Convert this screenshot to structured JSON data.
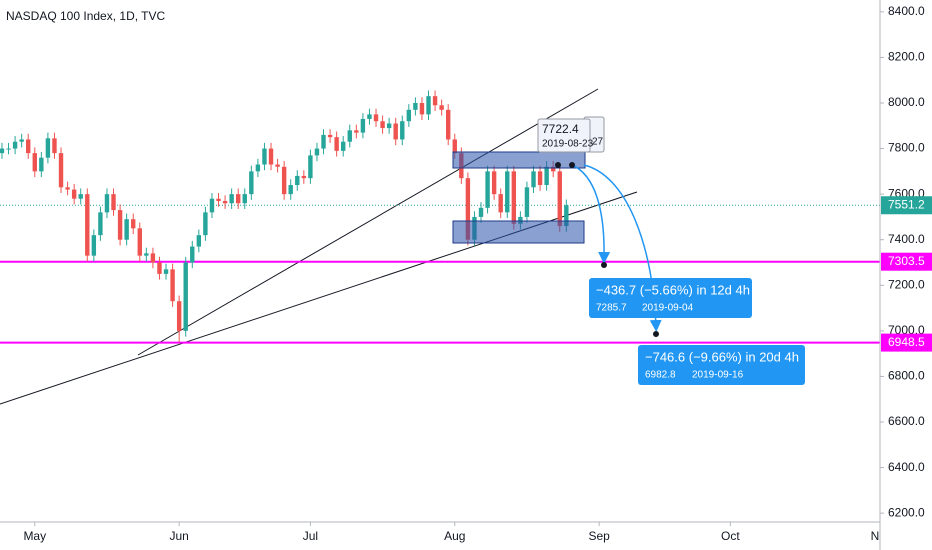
{
  "chart_data": {
    "type": "candlestick",
    "title": "NASDAQ 100 Index, 1D, TVC",
    "series": [
      {
        "up_color": "#26a69a",
        "down_color": "#ef5350",
        "open": [
          7780,
          7800,
          7800,
          7830,
          7840,
          7780,
          7700,
          7760,
          7845,
          7780,
          7630,
          7620,
          7580,
          7600,
          7330,
          7420,
          7520,
          7600,
          7530,
          7400,
          7490,
          7450,
          7330,
          7340,
          7300,
          7250,
          7270,
          7130,
          7000,
          7300,
          7370,
          7420,
          7520,
          7580,
          7570,
          7560,
          7600,
          7560,
          7600,
          7700,
          7730,
          7800,
          7730,
          7720,
          7600,
          7640,
          7680,
          7670,
          7770,
          7800,
          7860,
          7850,
          7790,
          7830,
          7880,
          7870,
          7930,
          7950,
          7920,
          7890,
          7910,
          7840,
          7920,
          7970,
          8000,
          7950,
          8030,
          7990,
          7970,
          7840,
          7780,
          7670,
          7400,
          7500,
          7540,
          7700,
          7600,
          7520,
          7700,
          7470,
          7500,
          7630,
          7700,
          7640,
          7720,
          7700,
          7460
        ],
        "high": [
          7825,
          7825,
          7855,
          7865,
          7865,
          7805,
          7785,
          7870,
          7870,
          7805,
          7655,
          7645,
          7625,
          7625,
          7445,
          7545,
          7625,
          7625,
          7555,
          7515,
          7515,
          7475,
          7365,
          7365,
          7325,
          7295,
          7295,
          7155,
          7325,
          7395,
          7445,
          7545,
          7605,
          7605,
          7595,
          7625,
          7625,
          7625,
          7725,
          7755,
          7825,
          7825,
          7755,
          7745,
          7665,
          7705,
          7705,
          7795,
          7825,
          7885,
          7885,
          7875,
          7855,
          7905,
          7905,
          7955,
          7975,
          7975,
          7945,
          7935,
          7935,
          7945,
          7995,
          8025,
          8025,
          8055,
          8055,
          8015,
          7995,
          7865,
          7805,
          7695,
          7525,
          7565,
          7725,
          7725,
          7625,
          7725,
          7725,
          7525,
          7655,
          7725,
          7725,
          7745,
          7745,
          7725,
          7576.2
        ],
        "low": [
          7755,
          7775,
          7775,
          7805,
          7755,
          7675,
          7675,
          7735,
          7755,
          7605,
          7595,
          7555,
          7555,
          7305,
          7305,
          7395,
          7495,
          7505,
          7375,
          7375,
          7425,
          7305,
          7305,
          7275,
          7225,
          7225,
          7105,
          6950,
          6975,
          7275,
          7345,
          7395,
          7495,
          7545,
          7535,
          7535,
          7535,
          7535,
          7575,
          7675,
          7705,
          7705,
          7695,
          7575,
          7575,
          7615,
          7645,
          7645,
          7745,
          7775,
          7825,
          7765,
          7765,
          7805,
          7845,
          7845,
          7905,
          7895,
          7865,
          7865,
          7815,
          7815,
          7895,
          7945,
          7925,
          7925,
          7965,
          7945,
          7815,
          7755,
          7645,
          7375,
          7375,
          7475,
          7515,
          7575,
          7495,
          7495,
          7445,
          7445,
          7475,
          7605,
          7615,
          7615,
          7675,
          7435,
          7435
        ],
        "close": [
          7800,
          7800,
          7830,
          7840,
          7780,
          7700,
          7760,
          7845,
          7780,
          7630,
          7620,
          7580,
          7600,
          7330,
          7420,
          7520,
          7600,
          7530,
          7400,
          7490,
          7450,
          7330,
          7340,
          7300,
          7250,
          7270,
          7130,
          7000,
          7300,
          7370,
          7420,
          7520,
          7580,
          7570,
          7560,
          7600,
          7560,
          7600,
          7700,
          7730,
          7800,
          7730,
          7720,
          7600,
          7640,
          7680,
          7670,
          7770,
          7800,
          7860,
          7850,
          7790,
          7830,
          7880,
          7870,
          7930,
          7950,
          7920,
          7890,
          7910,
          7840,
          7920,
          7970,
          8000,
          7950,
          8030,
          7990,
          7970,
          7840,
          7780,
          7670,
          7400,
          7500,
          7540,
          7700,
          7600,
          7520,
          7700,
          7470,
          7500,
          7630,
          7700,
          7640,
          7720,
          7700,
          7460,
          7551.2
        ]
      }
    ],
    "xlim": [
      -0.3,
      133.8
    ],
    "xticks": [
      {
        "value": 5,
        "label": "May"
      },
      {
        "value": 27,
        "label": "Jun"
      },
      {
        "value": 47,
        "label": "Jul"
      },
      {
        "value": 69,
        "label": "Aug"
      },
      {
        "value": 91,
        "label": "Sep"
      },
      {
        "value": 111,
        "label": "Oct"
      },
      {
        "value": 134,
        "label": "Nov"
      }
    ],
    "ylim": [
      6148,
      8452
    ],
    "yticks": [
      {
        "value": 6200,
        "label": "6200.0"
      },
      {
        "value": 6400,
        "label": "6400.0"
      },
      {
        "value": 6600,
        "label": "6600.0"
      },
      {
        "value": 6800,
        "label": "6800.0"
      },
      {
        "value": 7000,
        "label": "7000.0"
      },
      {
        "value": 7200,
        "label": "7200.0"
      },
      {
        "value": 7400,
        "label": "7400.0"
      },
      {
        "value": 7600,
        "label": "7600.0"
      },
      {
        "value": 7800,
        "label": "7800.0"
      },
      {
        "value": 8000,
        "label": "8000.0"
      },
      {
        "value": 8200,
        "label": "8200.0"
      },
      {
        "value": 8400,
        "label": "8400.0"
      }
    ],
    "horizontal_lines": [
      7303.5,
      6948.5
    ],
    "horizontal_line_color": "#ff00ff",
    "price_line_color": "#26a69a",
    "tooltip": {
      "price": "7722.4",
      "date": "2019-08-23",
      "behind": "27"
    },
    "callouts": [
      {
        "change": "−436.7 (−5.66%) in 12d 4h",
        "price": "7285.7",
        "date": "2019-09-04"
      },
      {
        "change": "−746.6 (−9.66%) in 20d 4h",
        "price": "6982.8",
        "date": "2019-09-16"
      }
    ]
  }
}
